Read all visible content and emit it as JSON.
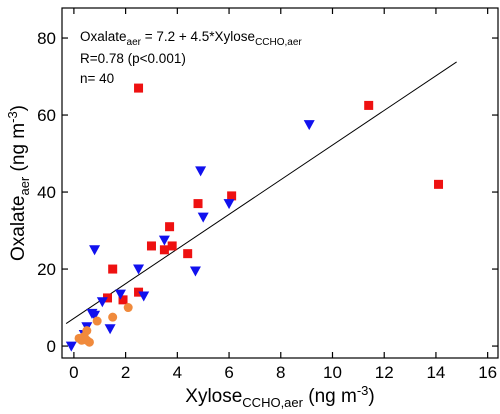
{
  "chart_data": {
    "type": "scatter",
    "annotation": {
      "line1": [
        "Oxalate",
        "aer",
        " = 7.2 + 4.5*Xylose",
        "CCHO,aer"
      ],
      "line2": "R=0.78 (p<0.001)",
      "line3": "n= 40"
    },
    "xlabel": [
      "Xylose",
      "CCHO,aer",
      " (ng m",
      "-3",
      ")"
    ],
    "ylabel": [
      "Oxalate",
      "aer",
      " (ng m",
      "-3",
      ")"
    ],
    "xlim": [
      -0.46,
      16.4
    ],
    "ylim": [
      -3.1,
      87.8
    ],
    "xticks": [
      0,
      2,
      4,
      6,
      8,
      10,
      12,
      14,
      16
    ],
    "yticks": [
      0,
      20,
      40,
      60,
      80
    ],
    "fit_line": {
      "color": "#000000",
      "x": [
        -0.3,
        14.8
      ],
      "y": [
        5.85,
        73.8
      ]
    },
    "series": [
      {
        "marker": "square",
        "color": "#ee1111",
        "x": [
          2.5,
          11.4,
          14.1,
          6.1,
          4.8,
          3.7,
          3.0,
          3.8,
          3.5,
          4.4,
          1.5,
          2.5,
          1.3,
          1.9
        ],
        "values": [
          67,
          62.5,
          42,
          39,
          37,
          31,
          26,
          26,
          25,
          24,
          20,
          14,
          12.5,
          12
        ]
      },
      {
        "marker": "triangle-down",
        "color": "#1111ee",
        "x": [
          9.1,
          4.9,
          5.0,
          6.0,
          3.5,
          4.7,
          2.5,
          0.8,
          1.8,
          2.7,
          1.1,
          1.4,
          0.7,
          0.8,
          0.5,
          0.4,
          -0.1
        ],
        "values": [
          57.5,
          45.5,
          33.5,
          37,
          27.5,
          19.5,
          20,
          25,
          13.5,
          13,
          11.5,
          4.5,
          8.5,
          8,
          5,
          3,
          0
        ]
      },
      {
        "marker": "circle",
        "color": "#f08a3c",
        "x": [
          0.9,
          1.5,
          2.1,
          0.2,
          0.4,
          0.5,
          0.6,
          0.5,
          0.3
        ],
        "values": [
          6.5,
          7.5,
          10,
          2,
          2.5,
          1.5,
          1,
          4,
          1.5
        ]
      }
    ]
  }
}
